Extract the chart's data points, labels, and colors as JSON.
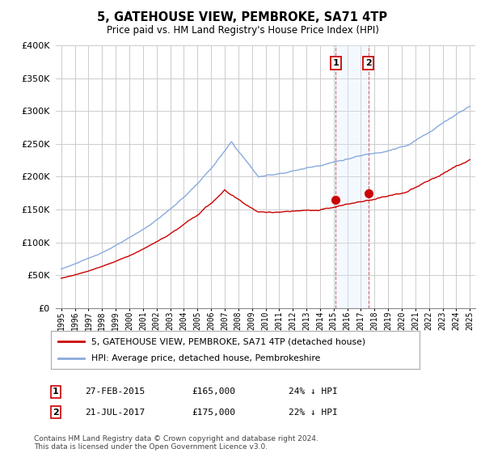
{
  "title": "5, GATEHOUSE VIEW, PEMBROKE, SA71 4TP",
  "subtitle": "Price paid vs. HM Land Registry's House Price Index (HPI)",
  "property_label": "5, GATEHOUSE VIEW, PEMBROKE, SA71 4TP (detached house)",
  "hpi_label": "HPI: Average price, detached house, Pembrokeshire",
  "property_color": "#cc0000",
  "hpi_color": "#88aadd",
  "shaded_color": "#ddeeff",
  "marker1_date_str": "27-FEB-2015",
  "marker1_price": 165000,
  "marker1_pct": "24% ↓ HPI",
  "marker2_date_str": "21-JUL-2017",
  "marker2_price": 175000,
  "marker2_pct": "22% ↓ HPI",
  "marker1_x": 2015.15,
  "marker2_x": 2017.55,
  "footer": "Contains HM Land Registry data © Crown copyright and database right 2024.\nThis data is licensed under the Open Government Licence v3.0.",
  "ylim_top": 400000,
  "ylim_bottom": 0,
  "xlim_left": 1994.6,
  "xlim_right": 2025.4
}
